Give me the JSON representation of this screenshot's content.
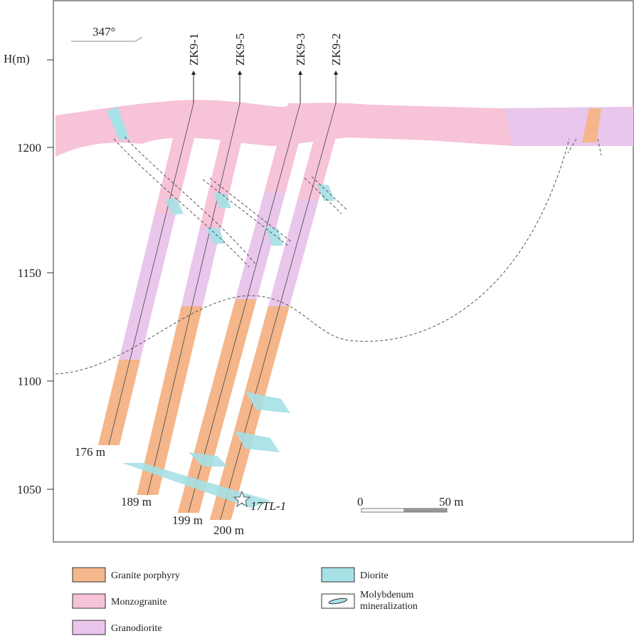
{
  "orientation": "347°",
  "axis": {
    "label": "H(m)",
    "ticks": [
      1200,
      1150,
      1100,
      1050
    ]
  },
  "boreholes": [
    {
      "name": "ZK9-1",
      "depth": "176 m"
    },
    {
      "name": "ZK9-5",
      "depth": "189 m"
    },
    {
      "name": "ZK9-3",
      "depth": "199 m"
    },
    {
      "name": "ZK9-2",
      "depth": "200 m"
    }
  ],
  "sample": "17TL-1",
  "scale": {
    "start": "0",
    "end": "50 m"
  },
  "legend": [
    {
      "label": "Granite porphyry"
    },
    {
      "label": "Monzogranite"
    },
    {
      "label": "Granodiorite"
    },
    {
      "label": "Diorite"
    },
    {
      "label": "Molybdenum mineralization"
    }
  ]
}
